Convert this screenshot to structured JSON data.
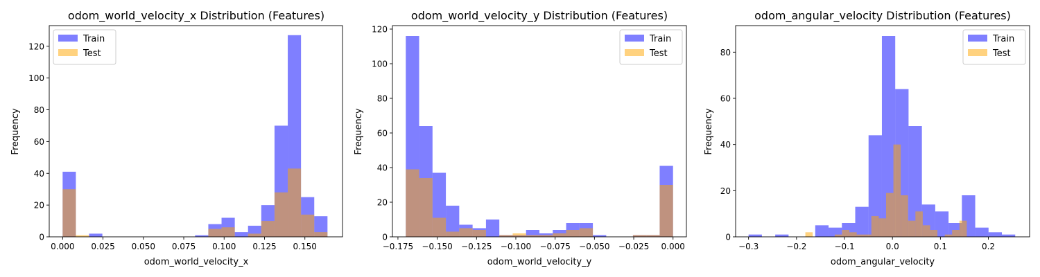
{
  "colors": {
    "train": "#0000ff",
    "test": "#ffa500",
    "alpha": 0.5,
    "axis": "#000000"
  },
  "chart_data": [
    {
      "type": "bar",
      "title": "odom_world_velocity_x Distribution (Features)",
      "xlabel": "odom_world_velocity_x",
      "ylabel": "Frequency",
      "xlim": [
        -0.0083,
        0.1733
      ],
      "ylim": [
        0,
        133
      ],
      "xticks": [
        0.0,
        0.025,
        0.05,
        0.075,
        0.1,
        0.125,
        0.15
      ],
      "xtick_labels": [
        "0.000",
        "0.025",
        "0.050",
        "0.075",
        "0.100",
        "0.125",
        "0.150"
      ],
      "yticks": [
        0,
        20,
        40,
        60,
        80,
        100,
        120
      ],
      "legend": {
        "position": "upper-left",
        "entries": [
          "Train",
          "Test"
        ]
      },
      "grid": false,
      "series": [
        {
          "name": "Train",
          "bins": [
            [
              0.0,
              0.0082
            ],
            [
              0.0082,
              0.0164
            ],
            [
              0.0164,
              0.0246
            ],
            [
              0.0738,
              0.082
            ],
            [
              0.082,
              0.0902
            ],
            [
              0.0902,
              0.0984
            ],
            [
              0.0984,
              0.1066
            ],
            [
              0.1066,
              0.1148
            ],
            [
              0.1148,
              0.123
            ],
            [
              0.123,
              0.1312
            ],
            [
              0.1312,
              0.1394
            ],
            [
              0.1394,
              0.1476
            ],
            [
              0.1476,
              0.1558
            ],
            [
              0.1558,
              0.164
            ]
          ],
          "values": [
            41,
            0,
            2,
            0,
            1,
            8,
            12,
            3,
            7,
            20,
            70,
            127,
            25,
            13
          ]
        },
        {
          "name": "Test",
          "bins": [
            [
              0.0,
              0.0082
            ],
            [
              0.0082,
              0.0164
            ],
            [
              0.0902,
              0.0984
            ],
            [
              0.0984,
              0.1066
            ],
            [
              0.1148,
              0.123
            ],
            [
              0.123,
              0.1312
            ],
            [
              0.1312,
              0.1394
            ],
            [
              0.1394,
              0.1476
            ],
            [
              0.1476,
              0.1558
            ],
            [
              0.1558,
              0.164
            ]
          ],
          "values": [
            30,
            1,
            5,
            6,
            2,
            10,
            28,
            43,
            14,
            3
          ]
        }
      ]
    },
    {
      "type": "bar",
      "title": "odom_world_velocity_y Distribution (Features)",
      "xlabel": "odom_world_velocity_y",
      "ylabel": "Frequency",
      "xlim": [
        -0.1785,
        0.0085
      ],
      "ylim": [
        0,
        122
      ],
      "xticks": [
        -0.175,
        -0.15,
        -0.125,
        -0.1,
        -0.075,
        -0.05,
        -0.025,
        0.0
      ],
      "xtick_labels": [
        "−0.175",
        "−0.150",
        "−0.125",
        "−0.100",
        "−0.075",
        "−0.050",
        "−0.025",
        "0.000"
      ],
      "yticks": [
        0,
        20,
        40,
        60,
        80,
        100,
        120
      ],
      "legend": {
        "position": "upper-right",
        "entries": [
          "Train",
          "Test"
        ]
      },
      "grid": false,
      "series": [
        {
          "name": "Train",
          "bin_start": -0.17,
          "bin_width": 0.0085,
          "values": [
            116,
            64,
            37,
            18,
            7,
            5,
            10,
            1,
            1,
            4,
            2,
            4,
            8,
            8,
            1,
            0,
            0,
            1,
            1,
            41
          ]
        },
        {
          "name": "Test",
          "bin_start": -0.17,
          "bin_width": 0.0085,
          "values": [
            39,
            34,
            11,
            3,
            5,
            4,
            0,
            1,
            2,
            1,
            1,
            2,
            4,
            5,
            0,
            0,
            0,
            1,
            1,
            30
          ]
        }
      ]
    },
    {
      "type": "bar",
      "title": "odom_angular_velocity Distribution (Features)",
      "xlabel": "odom_angular_velocity",
      "ylabel": "Frequency",
      "xlim": [
        -0.327,
        0.286
      ],
      "ylim": [
        0,
        91.5
      ],
      "xticks": [
        -0.3,
        -0.2,
        -0.1,
        0.0,
        0.1,
        0.2
      ],
      "xtick_labels": [
        "−0.3",
        "−0.2",
        "−0.1",
        "0.0",
        "0.1",
        "0.2"
      ],
      "yticks": [
        0,
        20,
        40,
        60,
        80
      ],
      "legend": {
        "position": "upper-right",
        "entries": [
          "Train",
          "Test"
        ]
      },
      "grid": false,
      "series": [
        {
          "name": "Train",
          "bin_start": -0.3,
          "bin_width": 0.0278,
          "values": [
            1,
            0,
            1,
            0,
            0,
            5,
            4,
            6,
            13,
            44,
            87,
            64,
            48,
            14,
            11,
            6,
            18,
            4,
            2,
            1
          ]
        },
        {
          "name": "Test",
          "bin_start": -0.1816,
          "bin_width": 0.0153,
          "values": [
            2,
            0,
            0,
            0,
            1,
            3,
            2,
            1,
            1,
            9,
            8,
            19,
            40,
            18,
            7,
            11,
            5,
            3,
            0,
            1,
            3,
            7
          ]
        }
      ]
    }
  ]
}
